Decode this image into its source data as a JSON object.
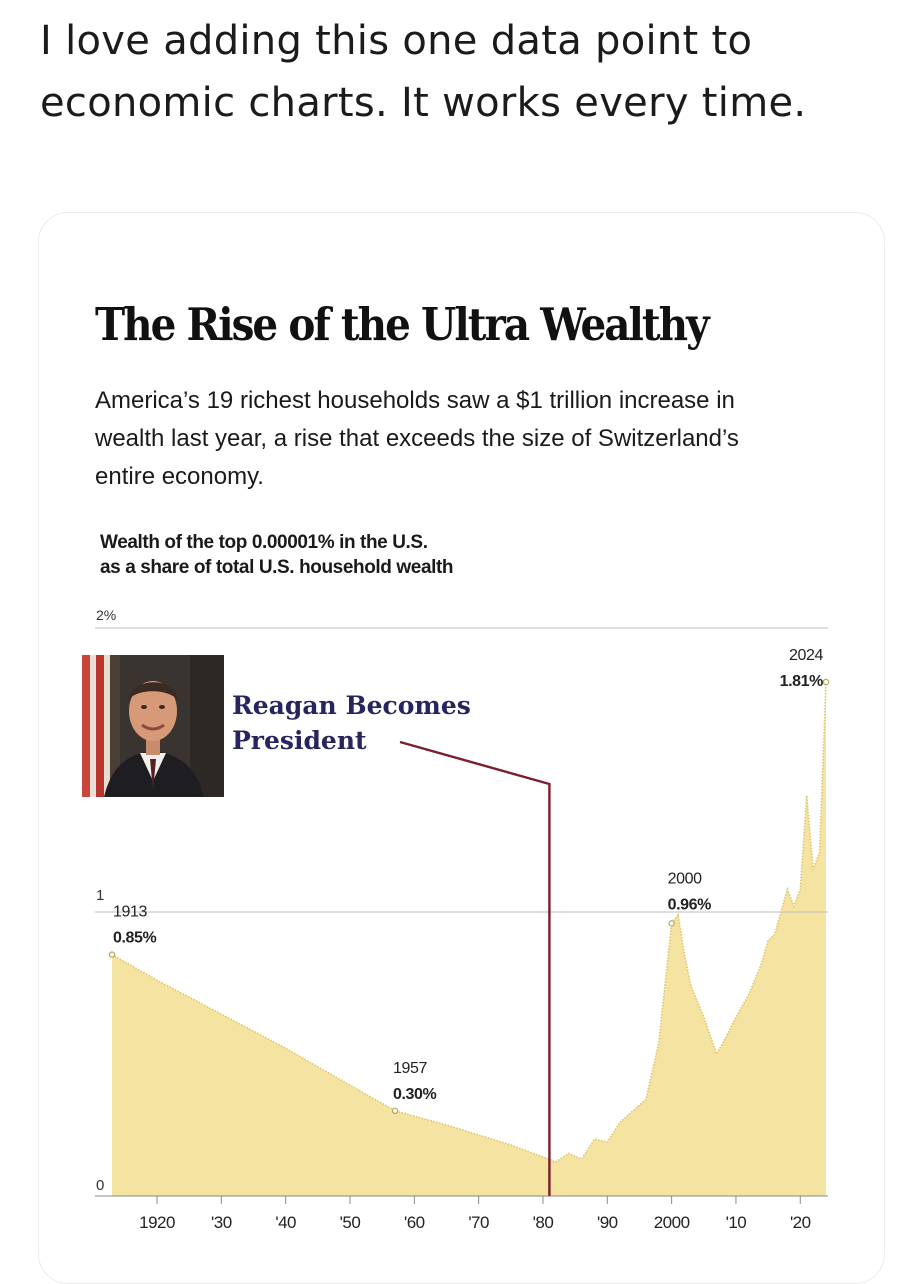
{
  "tweet": {
    "text": "I love adding this one data point to economic charts.  It works every time."
  },
  "article": {
    "headline": "The Rise of the Ultra Wealthy",
    "dek": "America’s 19 richest households saw a $1 trillion increase in wealth last year, a rise that exceeds the size of Switzerland’s entire economy."
  },
  "colors": {
    "area_fill": "#f5e3a2",
    "area_line": "#e0c56a",
    "annotation_line": "#7a1f2e",
    "annotation_text": "#26255e",
    "gridline": "#bdbdbd"
  },
  "annotation": {
    "line1": "Reagan Becomes",
    "line2": "President",
    "year": 1981,
    "icon": "reagan-portrait"
  },
  "chart_data": {
    "type": "area",
    "title": "The Rise of the Ultra Wealthy",
    "subtitle_lines": [
      "Wealth of the top 0.00001% in the U.S.",
      "as a share of total U.S. household wealth"
    ],
    "xlim": [
      1913,
      2024
    ],
    "ylim": [
      0,
      2
    ],
    "y_ticks": [
      {
        "value": 0,
        "label": "0"
      },
      {
        "value": 1,
        "label": "1"
      },
      {
        "value": 2,
        "label": "2%"
      }
    ],
    "x_ticks": [
      {
        "value": 1920,
        "label": "1920"
      },
      {
        "value": 1930,
        "label": "'30"
      },
      {
        "value": 1940,
        "label": "'40"
      },
      {
        "value": 1950,
        "label": "'50"
      },
      {
        "value": 1960,
        "label": "'60"
      },
      {
        "value": 1970,
        "label": "'70"
      },
      {
        "value": 1980,
        "label": "'80"
      },
      {
        "value": 1990,
        "label": "'90"
      },
      {
        "value": 2000,
        "label": "2000"
      },
      {
        "value": 2010,
        "label": "'10"
      },
      {
        "value": 2020,
        "label": "'20"
      }
    ],
    "grid": true,
    "x": [
      1913,
      1920,
      1930,
      1940,
      1950,
      1957,
      1965,
      1975,
      1982,
      1984,
      1986,
      1988,
      1990,
      1992,
      1994,
      1996,
      1998,
      2000,
      2001,
      2002,
      2003,
      2005,
      2007,
      2008,
      2010,
      2012,
      2014,
      2015,
      2016,
      2018,
      2019,
      2020,
      2021,
      2022,
      2023,
      2024
    ],
    "values": [
      0.85,
      0.76,
      0.64,
      0.52,
      0.39,
      0.3,
      0.25,
      0.18,
      0.12,
      0.15,
      0.13,
      0.2,
      0.19,
      0.26,
      0.3,
      0.34,
      0.54,
      0.96,
      0.99,
      0.85,
      0.74,
      0.63,
      0.5,
      0.54,
      0.63,
      0.71,
      0.82,
      0.9,
      0.92,
      1.08,
      1.02,
      1.08,
      1.41,
      1.15,
      1.21,
      1.81
    ],
    "data_labels": [
      {
        "x": 1913,
        "y": 0.85,
        "year": "1913",
        "value": "0.85%"
      },
      {
        "x": 1957,
        "y": 0.3,
        "year": "1957",
        "value": "0.30%"
      },
      {
        "x": 2000,
        "y": 0.96,
        "year": "2000",
        "value": "0.96%"
      },
      {
        "x": 2024,
        "y": 1.81,
        "year": "2024",
        "value": "1.81%"
      }
    ]
  }
}
